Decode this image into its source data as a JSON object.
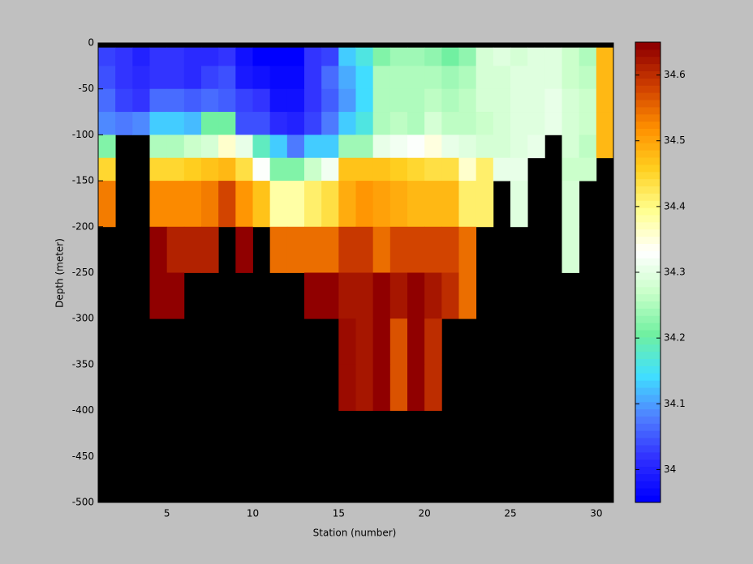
{
  "chart_data": {
    "type": "heatmap",
    "xlabel": "Station (number)",
    "ylabel": "Depth (meter)",
    "x_edges": [
      1,
      2,
      3,
      4,
      5,
      6,
      7,
      8,
      9,
      10,
      11,
      12,
      13,
      14,
      15,
      16,
      17,
      18,
      19,
      20,
      21,
      22,
      23,
      24,
      25,
      26,
      27,
      28,
      29,
      30,
      31
    ],
    "y_edges": [
      -5,
      -25,
      -50,
      -75,
      -100,
      -125,
      -150,
      -200,
      -250,
      -300,
      -350,
      -400
    ],
    "z": [
      [
        34.03,
        34.02,
        34.0,
        34.02,
        34.02,
        34.01,
        34.01,
        34.02,
        33.98,
        33.96,
        33.96,
        33.96,
        34.02,
        34.03,
        34.13,
        34.16,
        34.22,
        34.24,
        34.24,
        34.23,
        34.21,
        34.23,
        34.28,
        34.29,
        34.28,
        34.3,
        34.29,
        34.27,
        34.25,
        34.48
      ],
      [
        34.04,
        34.02,
        34.01,
        34.02,
        34.02,
        34.01,
        34.03,
        34.04,
        33.99,
        33.98,
        33.97,
        33.97,
        34.02,
        34.06,
        34.11,
        34.14,
        34.25,
        34.25,
        34.25,
        34.25,
        34.24,
        34.25,
        34.28,
        34.28,
        34.29,
        34.3,
        34.3,
        34.27,
        34.26,
        34.48
      ],
      [
        34.06,
        34.03,
        34.02,
        34.07,
        34.07,
        34.05,
        34.06,
        34.05,
        34.03,
        34.02,
        33.98,
        33.98,
        34.02,
        34.05,
        34.1,
        34.14,
        34.25,
        34.25,
        34.25,
        34.26,
        34.25,
        34.26,
        34.28,
        34.28,
        34.29,
        34.3,
        34.31,
        34.28,
        34.27,
        34.48
      ],
      [
        34.09,
        34.08,
        34.09,
        34.13,
        34.13,
        34.12,
        34.21,
        34.21,
        34.04,
        34.04,
        34.01,
        34.0,
        34.03,
        34.08,
        34.13,
        34.16,
        34.25,
        34.26,
        34.25,
        34.28,
        34.26,
        34.26,
        34.27,
        34.28,
        34.29,
        34.3,
        34.31,
        34.28,
        34.27,
        34.48
      ],
      [
        34.22,
        null,
        null,
        34.25,
        34.25,
        34.27,
        34.28,
        34.36,
        34.31,
        34.18,
        34.13,
        34.08,
        34.13,
        34.13,
        34.24,
        34.24,
        34.31,
        34.32,
        34.33,
        34.35,
        34.31,
        34.29,
        34.28,
        34.28,
        34.3,
        34.31,
        null,
        34.28,
        34.26,
        34.48
      ],
      [
        34.45,
        null,
        null,
        34.45,
        34.45,
        34.46,
        34.47,
        34.48,
        34.44,
        34.33,
        34.22,
        34.22,
        34.27,
        34.32,
        34.47,
        34.47,
        34.47,
        34.46,
        34.45,
        34.44,
        34.44,
        34.36,
        34.41,
        34.31,
        34.31,
        null,
        null,
        34.27,
        34.27,
        null
      ],
      [
        34.53,
        null,
        null,
        34.52,
        34.52,
        34.52,
        34.54,
        34.58,
        34.51,
        34.47,
        34.38,
        34.38,
        34.42,
        34.44,
        34.49,
        34.51,
        34.5,
        34.49,
        34.48,
        34.48,
        34.48,
        34.41,
        34.41,
        null,
        34.3,
        null,
        null,
        34.28,
        null,
        null
      ],
      [
        null,
        null,
        null,
        34.64,
        34.61,
        34.61,
        34.61,
        null,
        34.64,
        null,
        34.55,
        34.55,
        34.55,
        34.55,
        34.59,
        34.59,
        34.55,
        34.58,
        34.58,
        34.58,
        34.58,
        34.55,
        null,
        null,
        null,
        null,
        null,
        34.28,
        null,
        null
      ],
      [
        null,
        null,
        null,
        34.64,
        34.64,
        null,
        null,
        null,
        null,
        null,
        null,
        null,
        34.64,
        34.64,
        34.62,
        34.62,
        34.64,
        34.62,
        34.64,
        34.62,
        34.6,
        34.55,
        null,
        null,
        null,
        null,
        null,
        null,
        null,
        null
      ],
      [
        null,
        null,
        null,
        null,
        null,
        null,
        null,
        null,
        null,
        null,
        null,
        null,
        null,
        null,
        34.63,
        34.62,
        34.64,
        34.57,
        34.64,
        34.6,
        null,
        null,
        null,
        null,
        null,
        null,
        null,
        null,
        null,
        null
      ],
      [
        null,
        null,
        null,
        null,
        null,
        null,
        null,
        null,
        null,
        null,
        null,
        null,
        null,
        null,
        34.63,
        34.62,
        34.64,
        34.57,
        34.64,
        34.6,
        null,
        null,
        null,
        null,
        null,
        null,
        null,
        null,
        null,
        null
      ]
    ],
    "xlim": [
      1,
      31
    ],
    "xticks": [
      5,
      10,
      15,
      20,
      25,
      30
    ],
    "ylim": [
      -500,
      0
    ],
    "yticks": [
      -500,
      -450,
      -400,
      -350,
      -300,
      -250,
      -200,
      -150,
      -100,
      -50,
      0
    ],
    "clim": [
      33.95,
      34.65
    ],
    "colorbar_ticks": [
      34,
      34.1,
      34.2,
      34.3,
      34.4,
      34.5,
      34.6
    ]
  }
}
